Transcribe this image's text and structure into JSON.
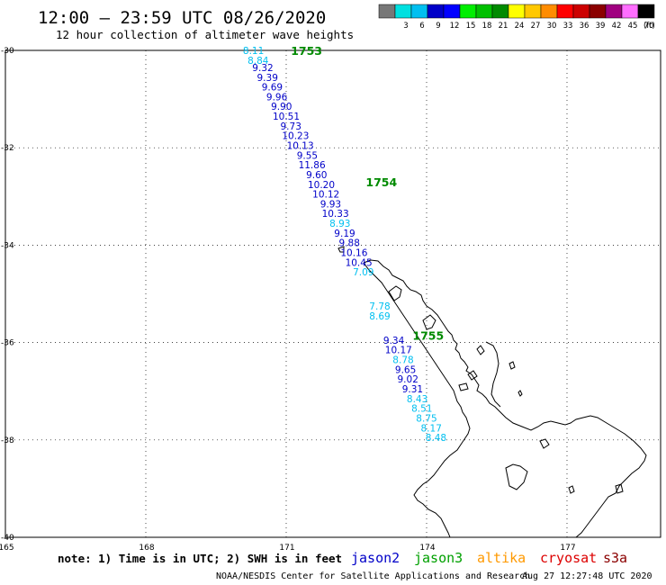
{
  "header": {
    "title": "12:00 — 23:59 UTC 08/26/2020",
    "subtitle": "12 hour collection of altimeter wave heights"
  },
  "legend": {
    "unit": "(ft)",
    "bins": [
      {
        "label": "",
        "color": "#777777"
      },
      {
        "label": "3",
        "color": "#00e0e0"
      },
      {
        "label": "6",
        "color": "#00bff0"
      },
      {
        "label": "9",
        "color": "#0000c8"
      },
      {
        "label": "12",
        "color": "#0000ff"
      },
      {
        "label": "15",
        "color": "#00ee00"
      },
      {
        "label": "18",
        "color": "#00c000"
      },
      {
        "label": "21",
        "color": "#008a00"
      },
      {
        "label": "24",
        "color": "#ffff00"
      },
      {
        "label": "27",
        "color": "#ffc800"
      },
      {
        "label": "30",
        "color": "#ff8c00"
      },
      {
        "label": "33",
        "color": "#ff0000"
      },
      {
        "label": "36",
        "color": "#cc0000"
      },
      {
        "label": "39",
        "color": "#8b0000"
      },
      {
        "label": "42",
        "color": "#a00080"
      },
      {
        "label": "45",
        "color": "#ff6eff"
      },
      {
        "label": "70",
        "color": "#000000"
      }
    ]
  },
  "axes": {
    "lat_labels": [
      "-30",
      "-32",
      "-34",
      "-36",
      "-38",
      "-40"
    ],
    "lon_labels": [
      "165",
      "168",
      "171",
      "174",
      "177"
    ],
    "lat_values": [
      -30,
      -32,
      -34,
      -36,
      -38,
      -40
    ],
    "lon_values": [
      165,
      168,
      171,
      174,
      177
    ],
    "lat_range": [
      -40,
      -30
    ],
    "lon_range": [
      165,
      179
    ]
  },
  "track": {
    "satellite": "jason2",
    "points": [
      {
        "lon": 170.3,
        "lat": -30.0,
        "swh": "8.11",
        "color": "#00bff0"
      },
      {
        "lon": 170.4,
        "lat": -30.2,
        "swh": "8.84",
        "color": "#00bff0"
      },
      {
        "lon": 170.5,
        "lat": -30.35,
        "swh": "9.32",
        "color": "#0000c8"
      },
      {
        "lon": 170.6,
        "lat": -30.55,
        "swh": "9.39",
        "color": "#0000c8"
      },
      {
        "lon": 170.7,
        "lat": -30.75,
        "swh": "9.69",
        "color": "#0000c8"
      },
      {
        "lon": 170.8,
        "lat": -30.95,
        "swh": "9.96",
        "color": "#0000c8"
      },
      {
        "lon": 170.9,
        "lat": -31.15,
        "swh": "9.90",
        "color": "#0000c8"
      },
      {
        "lon": 171.0,
        "lat": -31.35,
        "swh": "10.51",
        "color": "#0000c8"
      },
      {
        "lon": 171.1,
        "lat": -31.55,
        "swh": "9.73",
        "color": "#0000c8"
      },
      {
        "lon": 171.2,
        "lat": -31.75,
        "swh": "10.23",
        "color": "#0000c8"
      },
      {
        "lon": 171.3,
        "lat": -31.95,
        "swh": "10.13",
        "color": "#0000c8"
      },
      {
        "lon": 171.45,
        "lat": -32.15,
        "swh": "9.55",
        "color": "#0000c8"
      },
      {
        "lon": 171.55,
        "lat": -32.35,
        "swh": "11.86",
        "color": "#0000c8"
      },
      {
        "lon": 171.65,
        "lat": -32.55,
        "swh": "9.60",
        "color": "#0000c8"
      },
      {
        "lon": 171.75,
        "lat": -32.75,
        "swh": "10.20",
        "color": "#0000c8"
      },
      {
        "lon": 171.85,
        "lat": -32.95,
        "swh": "10.12",
        "color": "#0000c8"
      },
      {
        "lon": 171.95,
        "lat": -33.15,
        "swh": "9.93",
        "color": "#0000c8"
      },
      {
        "lon": 172.05,
        "lat": -33.35,
        "swh": "10.33",
        "color": "#0000c8"
      },
      {
        "lon": 172.15,
        "lat": -33.55,
        "swh": "8.93",
        "color": "#00bff0"
      },
      {
        "lon": 172.25,
        "lat": -33.75,
        "swh": "9.19",
        "color": "#0000c8"
      },
      {
        "lon": 172.35,
        "lat": -33.95,
        "swh": "9.88",
        "color": "#0000c8"
      },
      {
        "lon": 172.45,
        "lat": -34.15,
        "swh": "10.16",
        "color": "#0000c8"
      },
      {
        "lon": 172.55,
        "lat": -34.35,
        "swh": "10.45",
        "color": "#0000c8"
      },
      {
        "lon": 172.65,
        "lat": -34.55,
        "swh": "7.09",
        "color": "#00bff0"
      },
      {
        "lon": 173.0,
        "lat": -35.25,
        "swh": "7.78",
        "color": "#00bff0"
      },
      {
        "lon": 173.0,
        "lat": -35.45,
        "swh": "8.69",
        "color": "#00bff0"
      },
      {
        "lon": 173.3,
        "lat": -35.95,
        "swh": "9.34",
        "color": "#0000c8"
      },
      {
        "lon": 173.4,
        "lat": -36.15,
        "swh": "10.17",
        "color": "#0000c8"
      },
      {
        "lon": 173.5,
        "lat": -36.35,
        "swh": "8.78",
        "color": "#00bff0"
      },
      {
        "lon": 173.55,
        "lat": -36.55,
        "swh": "9.65",
        "color": "#0000c8"
      },
      {
        "lon": 173.6,
        "lat": -36.75,
        "swh": "9.02",
        "color": "#0000c8"
      },
      {
        "lon": 173.7,
        "lat": -36.95,
        "swh": "9.31",
        "color": "#0000c8"
      },
      {
        "lon": 173.8,
        "lat": -37.15,
        "swh": "8.43",
        "color": "#00bff0"
      },
      {
        "lon": 173.9,
        "lat": -37.35,
        "swh": "8.51",
        "color": "#00bff0"
      },
      {
        "lon": 174.0,
        "lat": -37.55,
        "swh": "8.75",
        "color": "#00bff0"
      },
      {
        "lon": 174.1,
        "lat": -37.75,
        "swh": "8.17",
        "color": "#00bff0"
      },
      {
        "lon": 174.2,
        "lat": -37.95,
        "swh": "8.48",
        "color": "#00bff0"
      }
    ]
  },
  "time_labels": [
    {
      "text": "1753",
      "lon": 171.1,
      "lat": -30.0
    },
    {
      "text": "1754",
      "lon": 172.7,
      "lat": -32.7
    },
    {
      "text": "1755",
      "lon": 173.7,
      "lat": -35.85
    }
  ],
  "time_label_color": "#008a00",
  "footer": {
    "note": "note: 1) Time is in UTC; 2) SWH is in feet",
    "satellites": [
      {
        "name": "jason2",
        "color": "#0000c8"
      },
      {
        "name": "jason3",
        "color": "#00a000"
      },
      {
        "name": "altika",
        "color": "#ff9900"
      },
      {
        "name": "cryosat",
        "color": "#dd0000"
      },
      {
        "name": "s3a",
        "color": "#8b0000"
      }
    ],
    "credit": "NOAA/NESDIS Center for Satellite Applications and Research",
    "timestamp": "Aug 27 12:27:48 UTC 2020"
  }
}
